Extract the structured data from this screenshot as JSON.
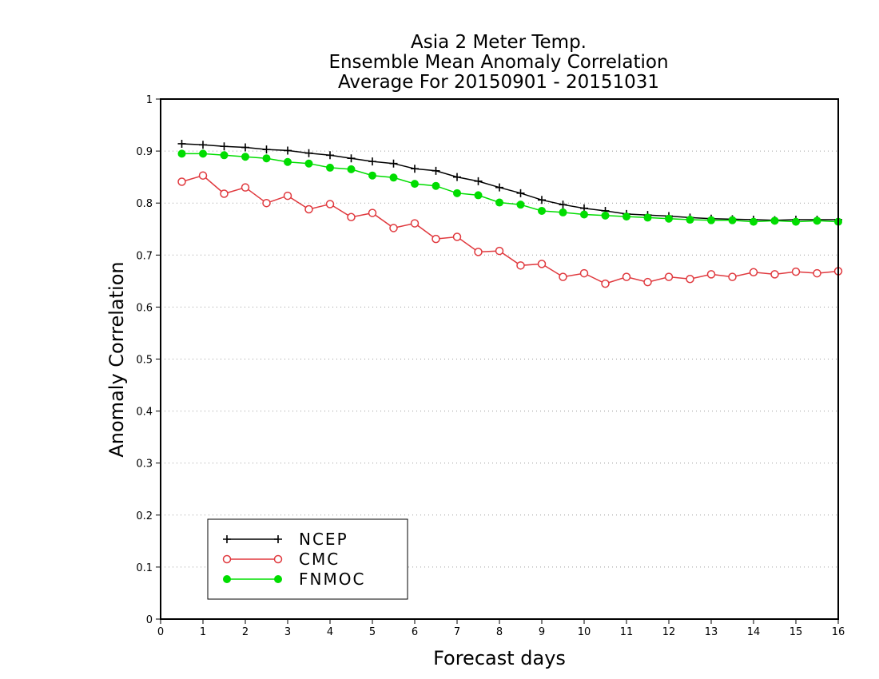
{
  "chart_data": {
    "type": "line",
    "title": [
      "Asia 2 Meter Temp.",
      "Ensemble Mean Anomaly Correlation",
      "Average For 20150901 - 20151031"
    ],
    "xlabel": "Forecast days",
    "ylabel": "Anomaly Correlation",
    "xlim": [
      0,
      16
    ],
    "ylim": [
      0,
      1
    ],
    "xticks": [
      "0",
      "1",
      "2",
      "3",
      "4",
      "5",
      "6",
      "7",
      "8",
      "9",
      "10",
      "11",
      "12",
      "13",
      "14",
      "15",
      "16"
    ],
    "yticks": [
      "0",
      "0.1",
      "0.2",
      "0.3",
      "0.4",
      "0.5",
      "0.6",
      "0.7",
      "0.8",
      "0.9",
      "1"
    ],
    "grid": "horizontal dotted",
    "legend_position": "bottom-left",
    "x": [
      0.5,
      1,
      1.5,
      2,
      2.5,
      3,
      3.5,
      4,
      4.5,
      5,
      5.5,
      6,
      6.5,
      7,
      7.5,
      8,
      8.5,
      9,
      9.5,
      10,
      10.5,
      11,
      11.5,
      12,
      12.5,
      13,
      13.5,
      14,
      14.5,
      15,
      15.5,
      16
    ],
    "series": [
      {
        "name": "NCEP",
        "color": "#000000",
        "marker": "plus",
        "values": [
          0.914,
          0.912,
          0.909,
          0.907,
          0.903,
          0.901,
          0.896,
          0.892,
          0.886,
          0.88,
          0.876,
          0.866,
          0.862,
          0.85,
          0.842,
          0.83,
          0.819,
          0.806,
          0.797,
          0.79,
          0.785,
          0.779,
          0.777,
          0.775,
          0.772,
          0.77,
          0.769,
          0.768,
          0.767,
          0.768,
          0.768,
          0.768
        ]
      },
      {
        "name": "CMC",
        "color": "#e0393e",
        "marker": "open-circle",
        "values": [
          0.841,
          0.853,
          0.818,
          0.83,
          0.8,
          0.814,
          0.788,
          0.798,
          0.773,
          0.781,
          0.752,
          0.761,
          0.731,
          0.735,
          0.706,
          0.708,
          0.68,
          0.683,
          0.658,
          0.665,
          0.645,
          0.658,
          0.648,
          0.658,
          0.654,
          0.663,
          0.658,
          0.667,
          0.663,
          0.668,
          0.665,
          0.669
        ]
      },
      {
        "name": "FNMOC",
        "color": "#00dd00",
        "marker": "filled-circle",
        "values": [
          0.895,
          0.895,
          0.892,
          0.889,
          0.886,
          0.879,
          0.876,
          0.868,
          0.865,
          0.853,
          0.849,
          0.837,
          0.833,
          0.819,
          0.815,
          0.801,
          0.797,
          0.785,
          0.782,
          0.778,
          0.776,
          0.774,
          0.772,
          0.77,
          0.768,
          0.767,
          0.767,
          0.764,
          0.766,
          0.764,
          0.766,
          0.764
        ]
      }
    ]
  }
}
